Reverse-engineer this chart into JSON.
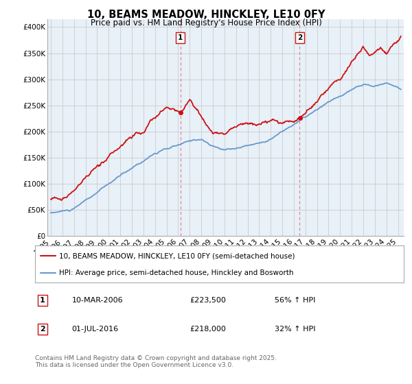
{
  "title": "10, BEAMS MEADOW, HINCKLEY, LE10 0FY",
  "subtitle": "Price paid vs. HM Land Registry's House Price Index (HPI)",
  "ylabel_ticks": [
    "£0",
    "£50K",
    "£100K",
    "£150K",
    "£200K",
    "£250K",
    "£300K",
    "£350K",
    "£400K"
  ],
  "ytick_values": [
    0,
    50000,
    100000,
    150000,
    200000,
    250000,
    300000,
    350000,
    400000
  ],
  "ylim": [
    0,
    415000
  ],
  "xlim_start": 1994.7,
  "xlim_end": 2025.5,
  "property_color": "#cc1111",
  "hpi_color": "#6699cc",
  "vline_color": "#e08080",
  "plot_bg_color": "#e8f0f8",
  "marker1_date": 2006.19,
  "marker2_date": 2016.5,
  "sale1_price": 223500,
  "sale2_price": 218000,
  "legend_property": "10, BEAMS MEADOW, HINCKLEY, LE10 0FY (semi-detached house)",
  "legend_hpi": "HPI: Average price, semi-detached house, Hinckley and Bosworth",
  "annotation1_label": "1",
  "annotation1_date": "10-MAR-2006",
  "annotation1_price": "£223,500",
  "annotation1_hpi": "56% ↑ HPI",
  "annotation2_label": "2",
  "annotation2_date": "01-JUL-2016",
  "annotation2_price": "£218,000",
  "annotation2_hpi": "32% ↑ HPI",
  "footer": "Contains HM Land Registry data © Crown copyright and database right 2025.\nThis data is licensed under the Open Government Licence v3.0.",
  "bg_color": "#ffffff",
  "grid_color": "#cccccc",
  "title_fontsize": 10.5,
  "subtitle_fontsize": 8.5,
  "tick_fontsize": 7.5,
  "legend_fontsize": 7.5,
  "annotation_fontsize": 8,
  "footer_fontsize": 6.5
}
